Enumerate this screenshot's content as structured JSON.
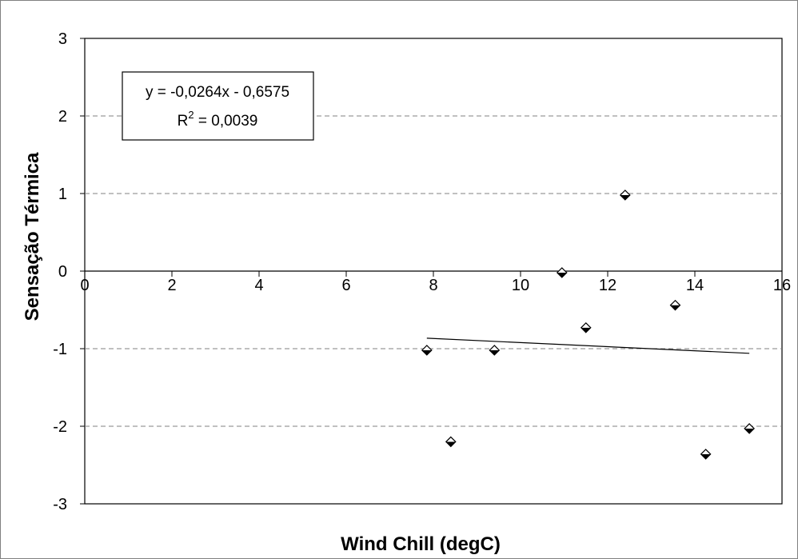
{
  "chart_data": {
    "type": "scatter",
    "xlabel": "Wind Chill (degC)",
    "ylabel": "Sensação Térmica",
    "xlim": [
      0,
      16
    ],
    "ylim": [
      -3,
      3
    ],
    "x_ticks": [
      "0",
      "2",
      "4",
      "6",
      "8",
      "10",
      "12",
      "14",
      "16"
    ],
    "y_ticks": [
      "3",
      "2",
      "1",
      "0",
      "-1",
      "-2",
      "-3"
    ],
    "grid": "horizontal dashed",
    "marker": "diamond",
    "series": [
      {
        "x": [
          7.85,
          8.4,
          9.4,
          10.95,
          11.5,
          12.4,
          13.55,
          14.25,
          15.25
        ],
        "y": [
          -1.02,
          -2.2,
          -1.02,
          -0.02,
          -0.73,
          0.98,
          -0.44,
          -2.36,
          -2.03
        ]
      }
    ],
    "trendline": {
      "equation": "y = -0,0264x - 0,6575",
      "r2_label": "R",
      "r2_sup": "2",
      "r2_value": " = 0,0039",
      "slope": -0.0264,
      "intercept": -0.6575,
      "x_range": [
        7.85,
        15.25
      ]
    },
    "colors": {
      "marker_fill_light": "#ffffff",
      "marker_fill_dark": "#000000",
      "grid": "#808080",
      "line": "#000000"
    }
  }
}
